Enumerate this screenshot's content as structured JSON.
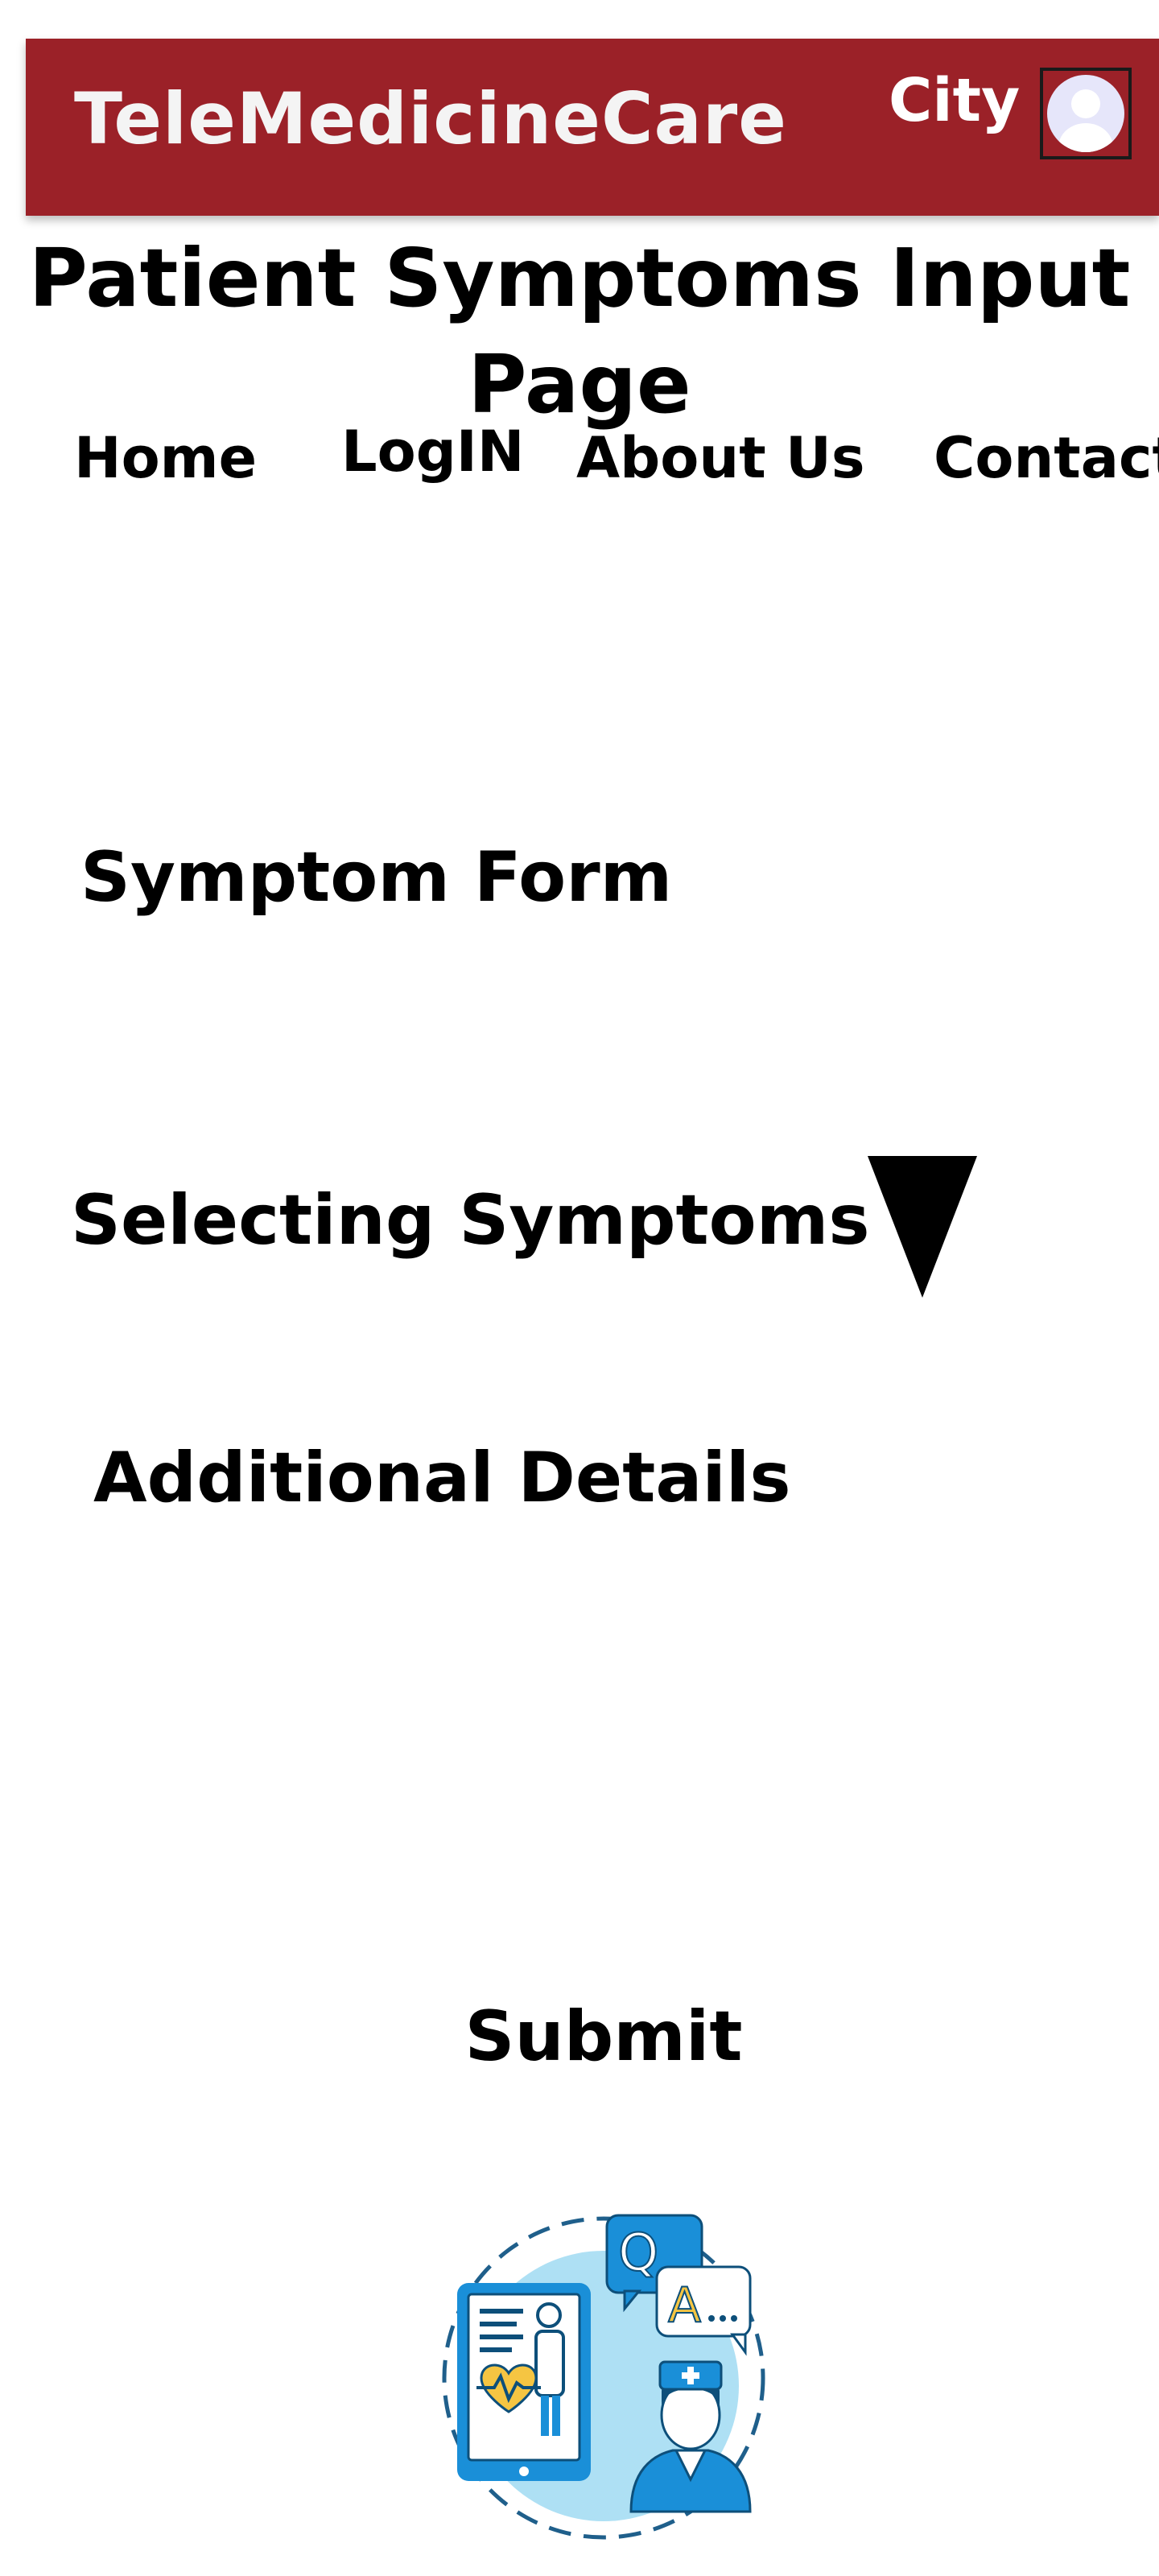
{
  "colors": {
    "header_bg": "#9b2128",
    "header_text": "#f4f4f4",
    "illustration_blue": "#1a8fd8",
    "illustration_light": "#aee0f4",
    "illustration_yellow": "#f5c542"
  },
  "header": {
    "brand": "TeleMedicineCare",
    "city_label": "City",
    "avatar_icon": "user-avatar-icon"
  },
  "page": {
    "title": "Patient Symptoms Input Page"
  },
  "nav": {
    "items": [
      {
        "label": "Home"
      },
      {
        "label": "LogIN"
      },
      {
        "label": "About Us"
      },
      {
        "label": "Contact"
      }
    ]
  },
  "form": {
    "heading": "Symptom Form",
    "select_label": "Selecting Symptoms",
    "dropdown_icon": "triangle-down-icon",
    "details_label": "Additional Details",
    "submit_label": "Submit"
  },
  "illustration": {
    "icon": "telemedicine-illustration-icon",
    "q_letter": "Q",
    "a_letter": "A"
  }
}
